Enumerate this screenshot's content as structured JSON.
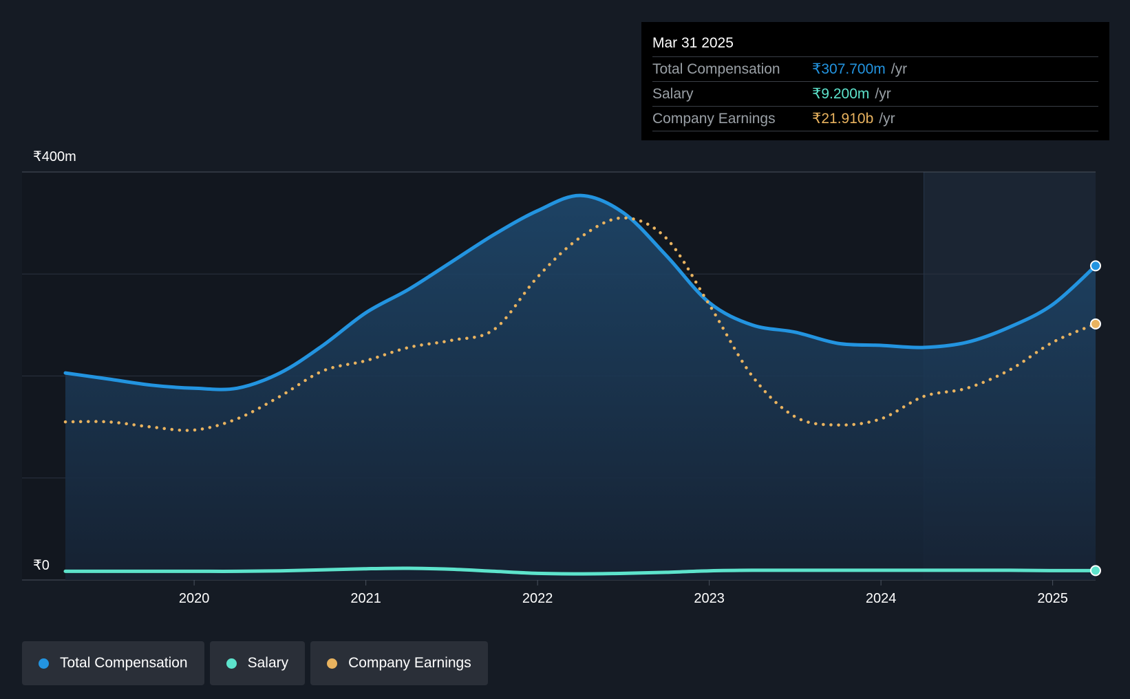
{
  "colors": {
    "background": "#151b24",
    "total_compensation": "#2394e0",
    "salary": "#5de3cc",
    "company_earnings": "#e9b35f",
    "area_fill": "#1c3a5a",
    "forecast_band": "#1b2533"
  },
  "tooltip": {
    "date": "Mar 31 2025",
    "rows": [
      {
        "label": "Total Compensation",
        "value": "₹307.700m",
        "unit": "/yr"
      },
      {
        "label": "Salary",
        "value": "₹9.200m",
        "unit": "/yr"
      },
      {
        "label": "Company Earnings",
        "value": "₹21.910b",
        "unit": "/yr"
      }
    ]
  },
  "legend": {
    "items": [
      {
        "label": "Total Compensation",
        "icon": "blue-dot-icon"
      },
      {
        "label": "Salary",
        "icon": "teal-dot-icon"
      },
      {
        "label": "Company Earnings",
        "icon": "orange-dot-icon"
      }
    ]
  },
  "chart_data": {
    "type": "line",
    "y_axis_labels": [
      "₹400m",
      "₹0"
    ],
    "ylim": [
      0,
      400
    ],
    "xlim": [
      2019.25,
      2025.25
    ],
    "x_ticks": [
      2020,
      2021,
      2022,
      2023,
      2024,
      2025
    ],
    "x_tick_labels": [
      "2020",
      "2021",
      "2022",
      "2023",
      "2024",
      "2025"
    ],
    "grid": true,
    "highlight_region_start": 2024.25,
    "series": [
      {
        "name": "Total Compensation",
        "style": "solid-area",
        "x": [
          2019.25,
          2019.5,
          2019.75,
          2020.0,
          2020.25,
          2020.5,
          2020.75,
          2021.0,
          2021.25,
          2021.5,
          2021.75,
          2022.0,
          2022.25,
          2022.5,
          2022.75,
          2023.0,
          2023.25,
          2023.5,
          2023.75,
          2024.0,
          2024.25,
          2024.5,
          2024.75,
          2025.0,
          2025.25
        ],
        "values": [
          203,
          197,
          191,
          188,
          188,
          203,
          230,
          262,
          285,
          312,
          339,
          362,
          377,
          360,
          318,
          272,
          250,
          243,
          232,
          230,
          228,
          233,
          248,
          270,
          308
        ]
      },
      {
        "name": "Company Earnings",
        "style": "dotted",
        "x": [
          2019.25,
          2019.5,
          2019.75,
          2020.0,
          2020.25,
          2020.5,
          2020.75,
          2021.0,
          2021.25,
          2021.5,
          2021.75,
          2022.0,
          2022.25,
          2022.5,
          2022.75,
          2023.0,
          2023.25,
          2023.5,
          2023.75,
          2024.0,
          2024.25,
          2024.5,
          2024.75,
          2025.0,
          2025.25
        ],
        "values": [
          155,
          155,
          150,
          147,
          158,
          180,
          205,
          215,
          228,
          235,
          246,
          297,
          336,
          355,
          335,
          270,
          200,
          160,
          152,
          158,
          180,
          188,
          206,
          233,
          251
        ]
      },
      {
        "name": "Salary",
        "style": "solid",
        "x": [
          2019.25,
          2019.5,
          2019.75,
          2020.0,
          2020.25,
          2020.5,
          2020.75,
          2021.0,
          2021.25,
          2021.5,
          2021.75,
          2022.0,
          2022.25,
          2022.5,
          2022.75,
          2023.0,
          2023.25,
          2023.5,
          2023.75,
          2024.0,
          2024.25,
          2024.5,
          2024.75,
          2025.0,
          2025.25
        ],
        "values": [
          8.5,
          8.5,
          8.5,
          8.5,
          8.5,
          9,
          10,
          11,
          11.5,
          10.5,
          8.5,
          6.5,
          6,
          6.5,
          7.5,
          9,
          9.5,
          9.5,
          9.5,
          9.5,
          9.5,
          9.5,
          9.5,
          9.2,
          9.2
        ]
      }
    ]
  }
}
